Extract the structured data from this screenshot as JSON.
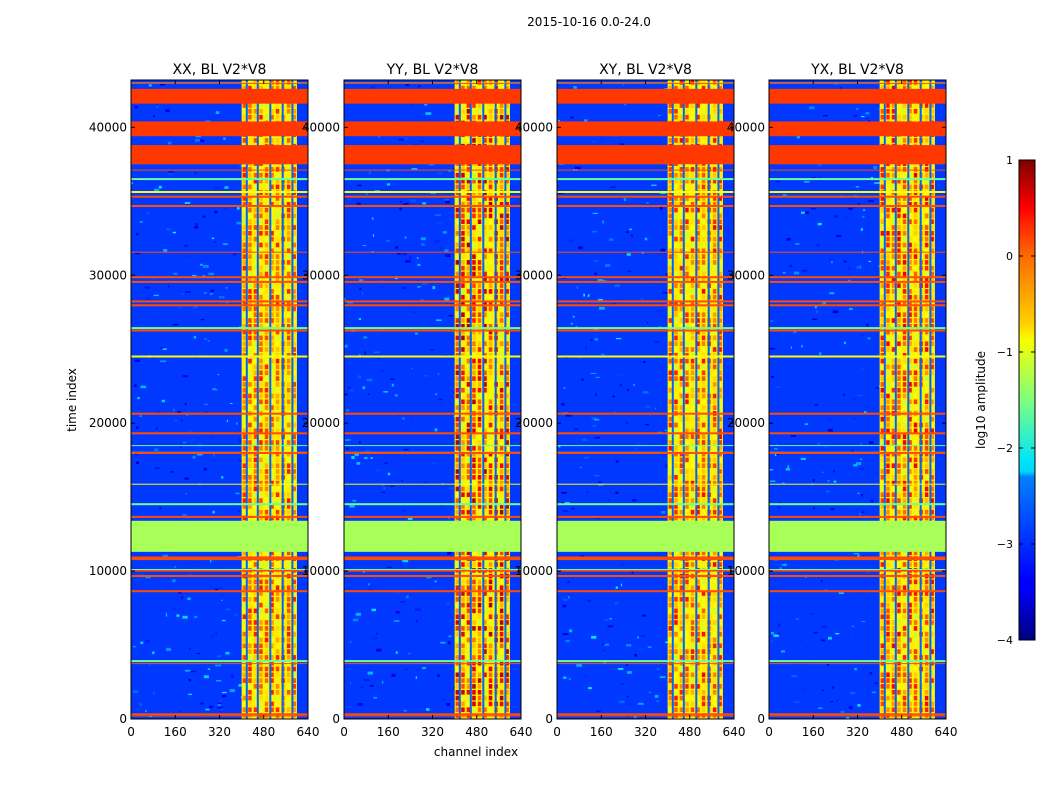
{
  "figure": {
    "suptitle": "2015-10-16 0.0-24.0"
  },
  "chart_data": {
    "type": "heatmap",
    "xlabel": "channel index",
    "ylabel": "time index",
    "xlim": [
      0,
      640
    ],
    "ylim": [
      0,
      43200
    ],
    "xticks": [
      0,
      160,
      320,
      480,
      640
    ],
    "yticks": [
      0,
      10000,
      20000,
      30000,
      40000
    ],
    "panels": [
      {
        "title": "XX, BL V2*V8",
        "strong_region_max_log10": 0.3
      },
      {
        "title": "YY, BL V2*V8",
        "strong_region_max_log10": 0.8
      },
      {
        "title": "XY, BL V2*V8",
        "strong_region_max_log10": 0.4
      },
      {
        "title": "YX, BL V2*V8",
        "strong_region_max_log10": 0.5
      }
    ],
    "strong_channel_band": [
      400,
      600
    ],
    "flagged_time_bands": [
      {
        "from": 11300,
        "to": 13400,
        "log10_value": -1.3
      },
      {
        "from": 37500,
        "to": 38800,
        "log10_value": 0.1
      },
      {
        "from": 39400,
        "to": 40400,
        "log10_value": 0.1
      },
      {
        "from": 41600,
        "to": 42600,
        "log10_value": 0.1
      }
    ],
    "colorbar": {
      "label": "log10 amplitude",
      "min": -4,
      "max": 1,
      "ticks": [
        1,
        0,
        -1,
        -2,
        -3,
        -4
      ],
      "tick_labels": [
        "1",
        "0",
        "−1",
        "−2",
        "−3",
        "−4"
      ]
    }
  }
}
